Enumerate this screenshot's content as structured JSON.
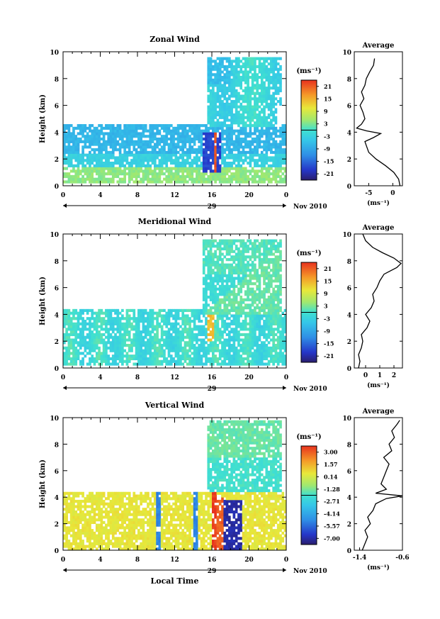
{
  "date_label": "Nov 2010",
  "day_label": "29",
  "xlabel_bottom": "Local Time",
  "cbar_unit": "(ms⁻¹)",
  "avg_unit": "(ms⁻¹)",
  "chart_data": [
    {
      "type": "heatmap",
      "title": "Zonal Wind",
      "ylabel": "Height (km)",
      "xticks": [
        "0",
        "4",
        "8",
        "12",
        "16",
        "20",
        "0"
      ],
      "yticks": [
        "0",
        "2",
        "4",
        "6",
        "8",
        "10"
      ],
      "ylim": [
        0,
        10
      ],
      "xlim_hours": [
        0,
        24
      ],
      "colorbar": {
        "ticks": [
          "21",
          "15",
          "9",
          "3",
          "-3",
          "-9",
          "-15",
          "-21"
        ],
        "range": [
          -24,
          24
        ]
      },
      "average": {
        "title": "Average",
        "xticks": [
          "-5",
          "0"
        ],
        "xlim": [
          -8,
          2
        ],
        "profile": [
          [
            0,
            1.5
          ],
          [
            0.5,
            1.2
          ],
          [
            1,
            0.2
          ],
          [
            1.5,
            -1.5
          ],
          [
            2,
            -3.5
          ],
          [
            2.5,
            -5.0
          ],
          [
            3,
            -5.5
          ],
          [
            3.3,
            -5.8
          ],
          [
            3.6,
            -4.0
          ],
          [
            3.9,
            -2.5
          ],
          [
            4.1,
            -5.5
          ],
          [
            4.3,
            -7.5
          ],
          [
            4.6,
            -6.5
          ],
          [
            5,
            -5.8
          ],
          [
            5.5,
            -6.2
          ],
          [
            6,
            -6.8
          ],
          [
            6.5,
            -6.0
          ],
          [
            7,
            -6.5
          ],
          [
            7.5,
            -5.8
          ],
          [
            8,
            -5.5
          ],
          [
            8.5,
            -4.8
          ],
          [
            9,
            -4.0
          ],
          [
            9.5,
            -3.8
          ]
        ]
      }
    },
    {
      "type": "heatmap",
      "title": "Meridional Wind",
      "ylabel": "Height (km)",
      "xticks": [
        "0",
        "4",
        "8",
        "12",
        "16",
        "20",
        "0"
      ],
      "yticks": [
        "0",
        "2",
        "4",
        "6",
        "8",
        "10"
      ],
      "ylim": [
        0,
        10
      ],
      "xlim_hours": [
        0,
        24
      ],
      "colorbar": {
        "ticks": [
          "21",
          "15",
          "9",
          "3",
          "-3",
          "-9",
          "-15",
          "-21"
        ],
        "range": [
          -24,
          24
        ]
      },
      "average": {
        "title": "Average",
        "xticks": [
          "0",
          "1",
          "2"
        ],
        "xlim": [
          -0.8,
          2.6
        ],
        "profile": [
          [
            0,
            -0.5
          ],
          [
            0.5,
            -0.4
          ],
          [
            1,
            -0.5
          ],
          [
            1.5,
            -0.3
          ],
          [
            2,
            -0.2
          ],
          [
            2.5,
            -0.3
          ],
          [
            3,
            0.1
          ],
          [
            3.5,
            0.3
          ],
          [
            4,
            0.0
          ],
          [
            4.5,
            0.4
          ],
          [
            5,
            0.6
          ],
          [
            5.5,
            0.5
          ],
          [
            6,
            0.8
          ],
          [
            6.5,
            1.0
          ],
          [
            7,
            1.3
          ],
          [
            7.5,
            2.2
          ],
          [
            7.8,
            2.5
          ],
          [
            8.2,
            2.0
          ],
          [
            8.6,
            1.2
          ],
          [
            9,
            0.5
          ],
          [
            9.5,
            0.0
          ],
          [
            10,
            -0.2
          ]
        ]
      }
    },
    {
      "type": "heatmap",
      "title": "Vertical Wind",
      "ylabel": "Height (km)",
      "xticks": [
        "0",
        "4",
        "8",
        "12",
        "16",
        "20",
        "0"
      ],
      "yticks": [
        "0",
        "2",
        "4",
        "6",
        "8",
        "10"
      ],
      "ylim": [
        0,
        10
      ],
      "xlim_hours": [
        0,
        24
      ],
      "colorbar": {
        "ticks": [
          "3.00",
          "1.57",
          "0.14",
          "-1.28",
          "-2.71",
          "-4.14",
          "-5.57",
          "-7.00"
        ],
        "range": [
          -7.7,
          3.7
        ]
      },
      "average": {
        "title": "Average",
        "xticks": [
          "-1.4",
          "-0.6"
        ],
        "xlim": [
          -1.5,
          -0.6
        ],
        "profile": [
          [
            0,
            -1.35
          ],
          [
            0.5,
            -1.3
          ],
          [
            1,
            -1.25
          ],
          [
            1.5,
            -1.3
          ],
          [
            2,
            -1.2
          ],
          [
            2.5,
            -1.25
          ],
          [
            3,
            -1.15
          ],
          [
            3.5,
            -1.1
          ],
          [
            3.9,
            -0.9
          ],
          [
            4.1,
            -0.6
          ],
          [
            4.3,
            -1.1
          ],
          [
            4.6,
            -0.9
          ],
          [
            5,
            -1.0
          ],
          [
            5.5,
            -0.95
          ],
          [
            6,
            -0.9
          ],
          [
            6.5,
            -0.85
          ],
          [
            7,
            -0.95
          ],
          [
            7.5,
            -0.8
          ],
          [
            8,
            -0.85
          ],
          [
            8.5,
            -0.75
          ],
          [
            9,
            -0.8
          ],
          [
            9.5,
            -0.7
          ],
          [
            9.8,
            -0.65
          ]
        ]
      }
    }
  ]
}
